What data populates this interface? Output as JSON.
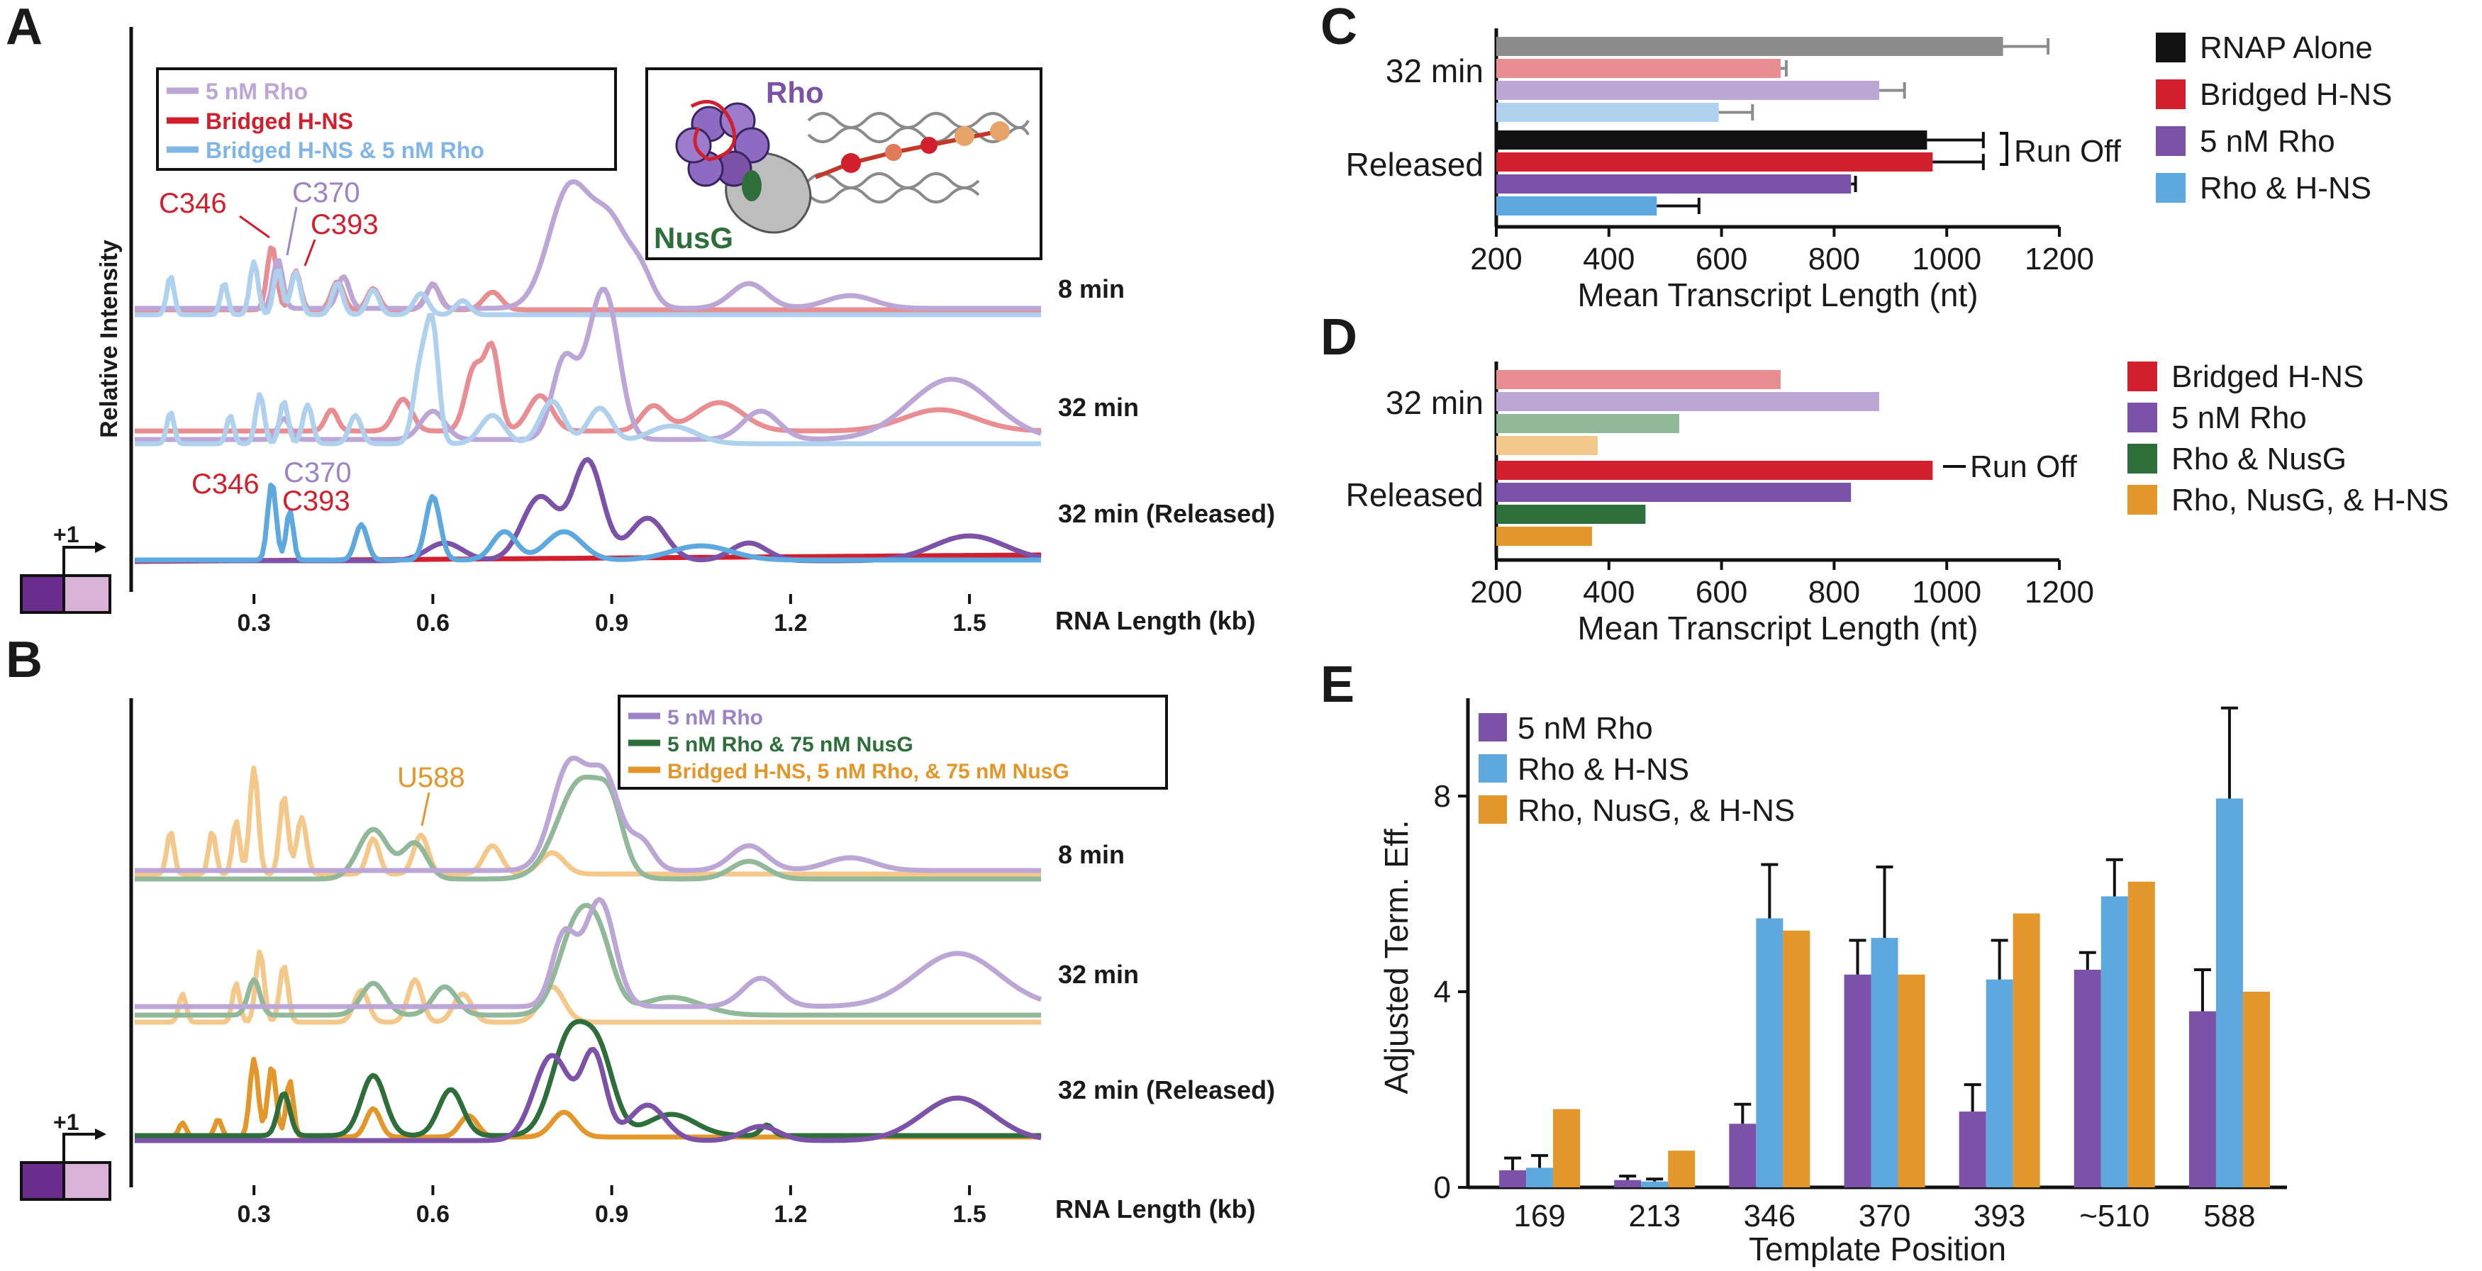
{
  "colors": {
    "rho": "#7B52A8",
    "rho_light": "#BBA6D6",
    "hns": "#D11F2D",
    "hns_light": "#E88E92",
    "rhohns": "#5EA8E0",
    "rhohns_light": "#AFD1EE",
    "nusg": "#2E6E3A",
    "nusg_light": "#92B89A",
    "all3": "#E3962A",
    "all3_light": "#F3C88A",
    "rnap": "#111111",
    "rnap_light": "#8C8C8C",
    "promoter_dark": "#6B2E8F",
    "promoter_light": "#D7B3D7"
  },
  "panels": {
    "A": {
      "letter": "A",
      "ylabel": "Relative Intensity",
      "xlabel": "RNA Length (kb)",
      "xticks": [
        "0.3",
        "0.6",
        "0.9",
        "1.2",
        "1.5"
      ],
      "xrange": [
        0.1,
        1.62
      ],
      "legend": [
        "5 nM Rho",
        "Bridged H-NS",
        "Bridged H-NS & 5 nM Rho"
      ],
      "trace_labels": [
        "8 min",
        "32 min",
        "32 min (Released)"
      ],
      "annotations_top": [
        "C346",
        "C370",
        "C393"
      ],
      "annotations_bottom": [
        "C346",
        "C370",
        "C393"
      ],
      "promoter_label": "+1",
      "inset": {
        "labels": [
          "Rho",
          "NusG"
        ]
      }
    },
    "B": {
      "letter": "B",
      "xlabel": "RNA Length (kb)",
      "xticks": [
        "0.3",
        "0.6",
        "0.9",
        "1.2",
        "1.5"
      ],
      "xrange": [
        0.1,
        1.62
      ],
      "legend": [
        "5 nM Rho",
        "5 nM Rho & 75 nM NusG",
        "Bridged H-NS, 5 nM Rho, & 75 nM NusG"
      ],
      "trace_labels": [
        "8 min",
        "32 min",
        "32 min (Released)"
      ],
      "annotation": "U588",
      "promoter_label": "+1"
    }
  },
  "chart_data": [
    {
      "panel": "C",
      "type": "bar",
      "orientation": "horizontal",
      "groups": [
        "32 min",
        "Released"
      ],
      "series": [
        {
          "name": "RNAP Alone",
          "values": [
            1100,
            965
          ],
          "errors": [
            80,
            100
          ]
        },
        {
          "name": "Bridged H-NS",
          "values": [
            705,
            975
          ],
          "errors": [
            10,
            90
          ]
        },
        {
          "name": "5 nM Rho",
          "values": [
            880,
            830
          ],
          "errors": [
            45,
            8
          ]
        },
        {
          "name": "Rho & H-NS",
          "values": [
            595,
            485
          ],
          "errors": [
            60,
            75
          ]
        }
      ],
      "xlim": [
        200,
        1200
      ],
      "xticks": [
        200,
        400,
        600,
        800,
        1000,
        1200
      ],
      "xlabel": "Mean Transcript Length (nt)",
      "annotation": "Run Off",
      "legend_position": "right"
    },
    {
      "panel": "D",
      "type": "bar",
      "orientation": "horizontal",
      "groups": [
        "32 min",
        "Released"
      ],
      "series": [
        {
          "name": "Bridged H-NS",
          "values": [
            705,
            975
          ]
        },
        {
          "name": "5 nM Rho",
          "values": [
            880,
            830
          ]
        },
        {
          "name": "Rho & NusG",
          "values": [
            525,
            465
          ]
        },
        {
          "name": "Rho, NusG, & H-NS",
          "values": [
            380,
            370
          ]
        }
      ],
      "xlim": [
        200,
        1200
      ],
      "xticks": [
        200,
        400,
        600,
        800,
        1000,
        1200
      ],
      "xlabel": "Mean Transcript Length (nt)",
      "annotation": "Run Off",
      "legend_position": "right"
    },
    {
      "panel": "E",
      "type": "bar",
      "categories": [
        "169",
        "213",
        "346",
        "370",
        "393",
        "~510",
        "588"
      ],
      "series": [
        {
          "name": "5 nM Rho",
          "values": [
            0.35,
            0.15,
            1.3,
            4.35,
            1.55,
            4.45,
            3.6
          ],
          "errors": [
            0.25,
            0.08,
            0.4,
            0.7,
            0.55,
            0.35,
            0.85
          ]
        },
        {
          "name": "Rho & H-NS",
          "values": [
            0.4,
            0.12,
            5.5,
            5.1,
            4.25,
            5.95,
            7.95
          ],
          "errors": [
            0.25,
            0.05,
            1.1,
            1.45,
            0.8,
            0.75,
            1.85
          ]
        },
        {
          "name": "Rho, NusG, & H-NS",
          "values": [
            1.6,
            0.75,
            5.25,
            4.35,
            5.6,
            6.25,
            4.0
          ]
        }
      ],
      "ylim": [
        0,
        10
      ],
      "yticks": [
        0,
        4,
        8
      ],
      "xlabel": "Template Position",
      "ylabel": "Adjusted Term. Eff.",
      "legend_position": "top-left"
    }
  ]
}
